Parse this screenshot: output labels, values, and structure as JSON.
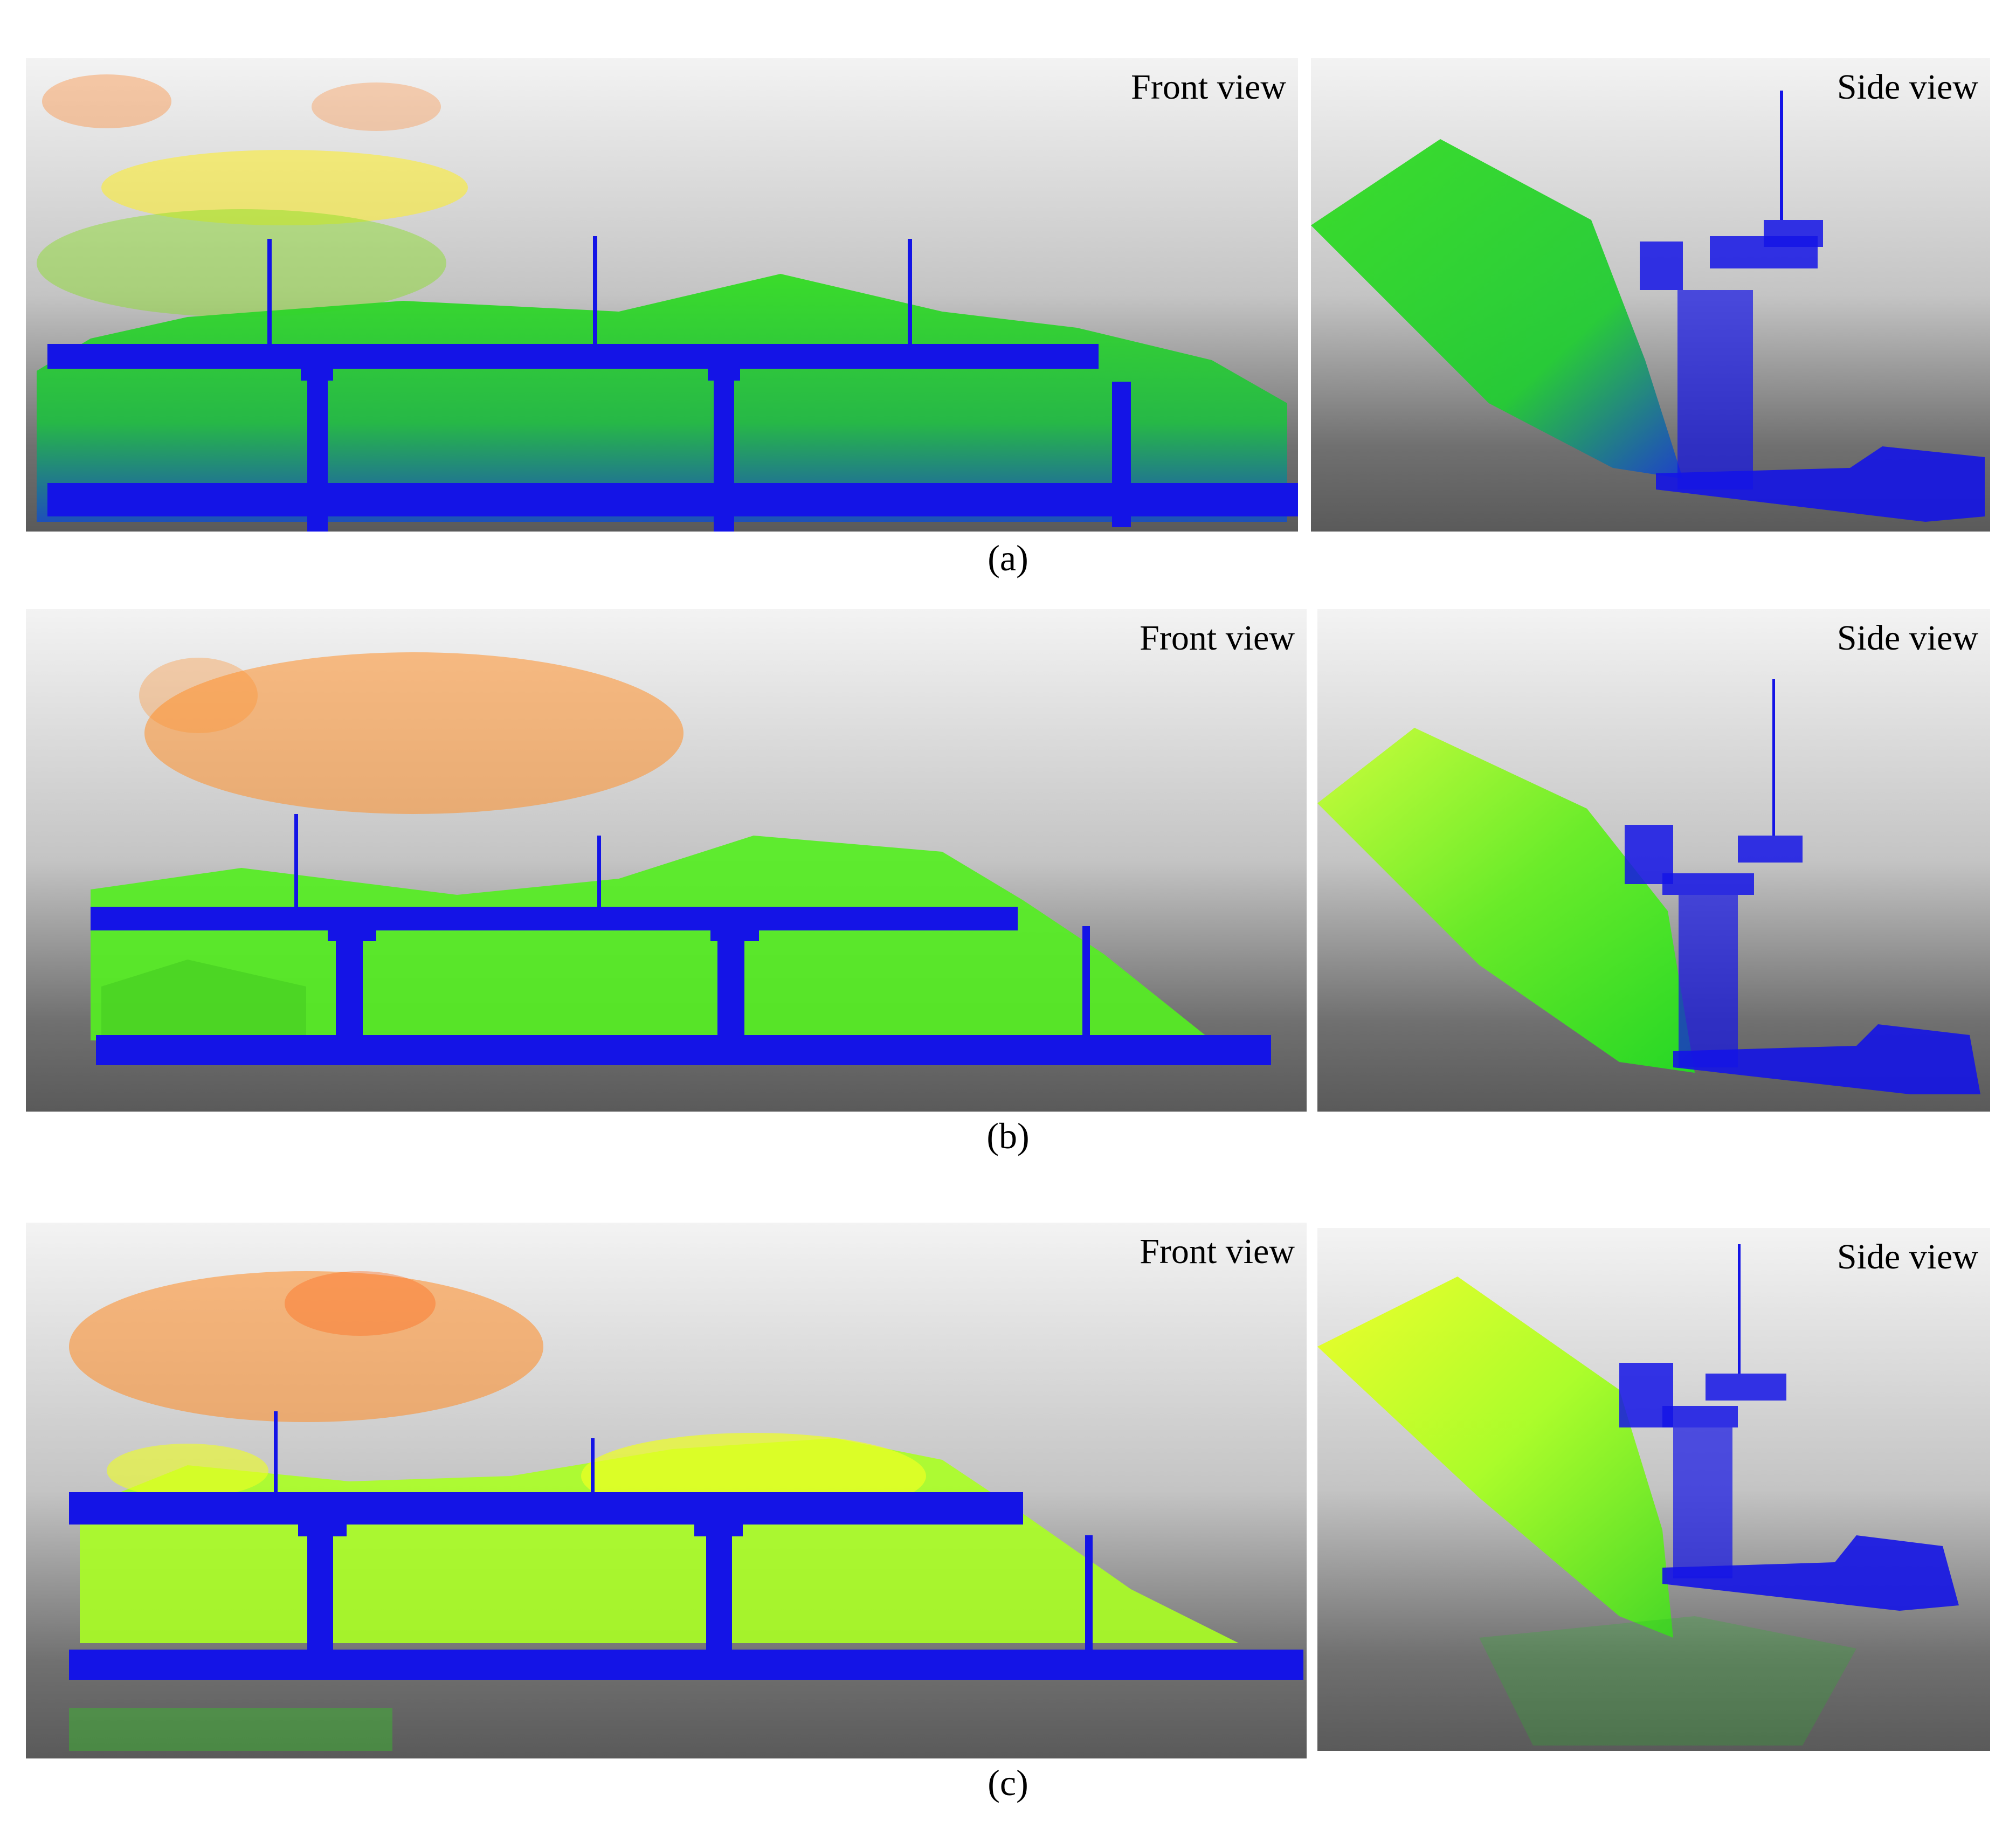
{
  "figure": {
    "rows": [
      {
        "caption": "(a)",
        "front_label": "Front view",
        "side_label": "Side view",
        "colors": {
          "sky": "#ff7a1a",
          "treetop": "#ffee22",
          "vegetation": "#33dd22",
          "deck": "#1414e6"
        }
      },
      {
        "caption": "(b)",
        "front_label": "Front view",
        "side_label": "Side view",
        "colors": {
          "sky": "#ff8f2a",
          "treetop": "#a6ff2a",
          "vegetation": "#55ee22",
          "deck": "#1414e6"
        }
      },
      {
        "caption": "(c)",
        "front_label": "Front view",
        "side_label": "Side view",
        "colors": {
          "sky": "#ff8a22",
          "treetop": "#eeff22",
          "vegetation": "#99ff22",
          "deck": "#1414e6"
        }
      }
    ]
  }
}
